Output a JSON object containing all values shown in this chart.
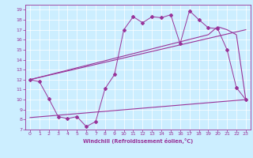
{
  "xlabel": "Windchill (Refroidissement éolien,°C)",
  "bg_color": "#cceeff",
  "line_color": "#993399",
  "grid_color": "#ffffff",
  "xlim": [
    -0.5,
    23.5
  ],
  "ylim": [
    7,
    19.5
  ],
  "xticks": [
    0,
    1,
    2,
    3,
    4,
    5,
    6,
    7,
    8,
    9,
    10,
    11,
    12,
    13,
    14,
    15,
    16,
    17,
    18,
    19,
    20,
    21,
    22,
    23
  ],
  "yticks": [
    7,
    8,
    9,
    10,
    11,
    12,
    13,
    14,
    15,
    16,
    17,
    18,
    19
  ],
  "series1_x": [
    0,
    1,
    2,
    3,
    4,
    5,
    6,
    7,
    8,
    9,
    10,
    11,
    12,
    13,
    14,
    15,
    16,
    17,
    18,
    19,
    20,
    21,
    22,
    23
  ],
  "series1_y": [
    12,
    11.8,
    10.1,
    8.3,
    8.1,
    8.3,
    7.3,
    7.8,
    11.1,
    12.5,
    17.0,
    18.3,
    17.7,
    18.3,
    18.2,
    18.5,
    15.6,
    18.9,
    18.0,
    17.2,
    17.1,
    15.0,
    11.2,
    10.0
  ],
  "series2_x": [
    0,
    23
  ],
  "series2_y": [
    12.0,
    17.0
  ],
  "series3_x": [
    0,
    19,
    20,
    21,
    22,
    23
  ],
  "series3_y": [
    12.0,
    16.5,
    17.3,
    17.0,
    16.5,
    10.0
  ],
  "series4_x": [
    0,
    23
  ],
  "series4_y": [
    8.2,
    10.0
  ]
}
